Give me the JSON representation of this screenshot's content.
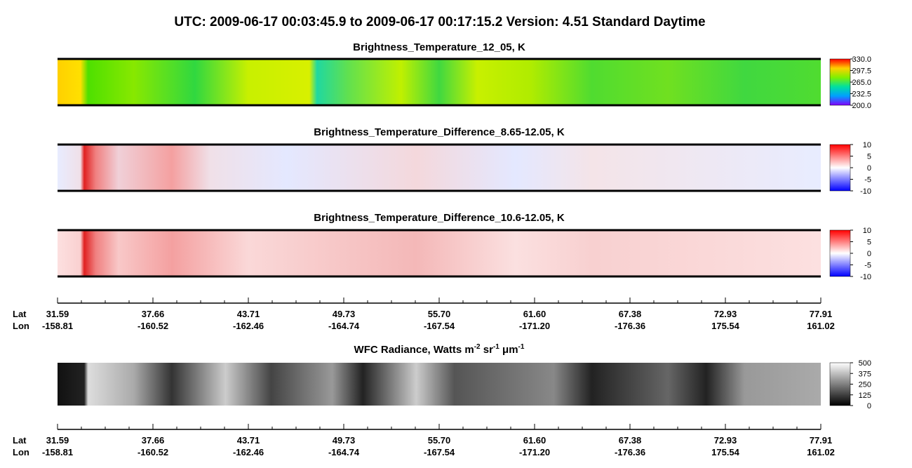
{
  "title": "UTC:  2009-06-17   00:03:45.9  to  2009-06-17   00:17:15.2    Version: 4.51  Standard Daytime",
  "panels": [
    {
      "title": "Brightness_Temperature_12_05, K",
      "colorbar": {
        "range": [
          200,
          330
        ],
        "ticks": [
          {
            "value": 200,
            "label": "200.0"
          },
          232.5,
          {
            "value": 265,
            "label": "265.0"
          },
          297.5,
          {
            "value": 330,
            "label": "330.0"
          }
        ]
      }
    },
    {
      "title": "Brightness_Temperature_Difference_8.65-12.05, K",
      "colorbar": {
        "range": [
          -10,
          10
        ],
        "ticks": [
          -10,
          -5,
          0,
          5,
          10
        ]
      }
    },
    {
      "title": "Brightness_Temperature_Difference_10.6-12.05, K",
      "colorbar": {
        "range": [
          -10,
          10
        ],
        "ticks": [
          -10,
          -5,
          0,
          5,
          10
        ]
      }
    },
    {
      "title_parts": [
        "WFC Radiance, Watts m",
        "-2",
        " sr",
        "-1",
        " μm",
        "-1"
      ],
      "colorbar": {
        "range": [
          0,
          500
        ],
        "ticks": [
          0,
          125,
          250,
          375,
          500
        ]
      }
    }
  ],
  "axis": {
    "lat_label": "Lat",
    "lon_label": "Lon",
    "lat": [
      "31.59",
      "37.66",
      "43.71",
      "49.73",
      "55.70",
      "61.60",
      "67.38",
      "72.93",
      "77.91"
    ],
    "lon": [
      "-158.81",
      "-160.52",
      "-162.46",
      "-164.74",
      "-167.54",
      "-171.20",
      "-176.36",
      "175.54",
      "161.02"
    ]
  }
}
